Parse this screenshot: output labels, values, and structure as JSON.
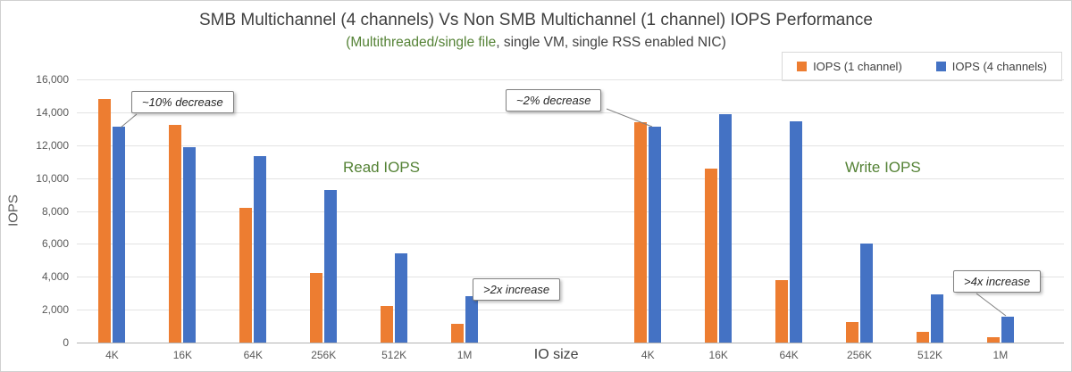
{
  "chart_data": {
    "type": "bar",
    "title": "SMB Multichannel (4 channels) Vs Non SMB Multichannel (1 channel) IOPS Performance",
    "subtitle": {
      "highlight": "(Multithreaded/single file",
      "rest": ", single VM, single RSS enabled NIC)"
    },
    "xlabel": "IO size",
    "ylabel": "IOPS",
    "ylim": [
      0,
      16000
    ],
    "y_tick_step": 2000,
    "y_ticks": [
      "0",
      "2,000",
      "4,000",
      "6,000",
      "8,000",
      "10,000",
      "12,000",
      "14,000",
      "16,000"
    ],
    "grid": true,
    "legend_position": "top-right",
    "legend": [
      {
        "label": "IOPS (1 channel)",
        "color": "#ED7D31"
      },
      {
        "label": "IOPS (4 channels)",
        "color": "#4472C4"
      }
    ],
    "groups": [
      {
        "label": "Read IOPS",
        "categories": [
          "4K",
          "16K",
          "64K",
          "256K",
          "512K",
          "1M"
        ],
        "series": [
          {
            "name": "IOPS (1 channel)",
            "color": "#ED7D31",
            "values": [
              14800,
              13250,
              8200,
              4250,
              2250,
              1150
            ]
          },
          {
            "name": "IOPS (4 channels)",
            "color": "#4472C4",
            "values": [
              13100,
              11900,
              11350,
              9300,
              5450,
              2800
            ]
          }
        ]
      },
      {
        "label": "Write IOPS",
        "categories": [
          "4K",
          "16K",
          "64K",
          "256K",
          "512K",
          "1M"
        ],
        "series": [
          {
            "name": "IOPS (1 channel)",
            "color": "#ED7D31",
            "values": [
              13400,
              10550,
              3800,
              1250,
              650,
              300
            ]
          },
          {
            "name": "IOPS (4 channels)",
            "color": "#4472C4",
            "values": [
              13100,
              13900,
              13450,
              6000,
              2950,
              1550
            ]
          }
        ]
      }
    ],
    "annotations": [
      {
        "text": "~10% decrease"
      },
      {
        "text": "~2% decrease"
      },
      {
        "text": ">2x increase"
      },
      {
        "text": ">4x increase"
      }
    ],
    "colors": {
      "series1": "#ED7D31",
      "series2": "#4472C4",
      "highlight_green": "#548235"
    }
  }
}
